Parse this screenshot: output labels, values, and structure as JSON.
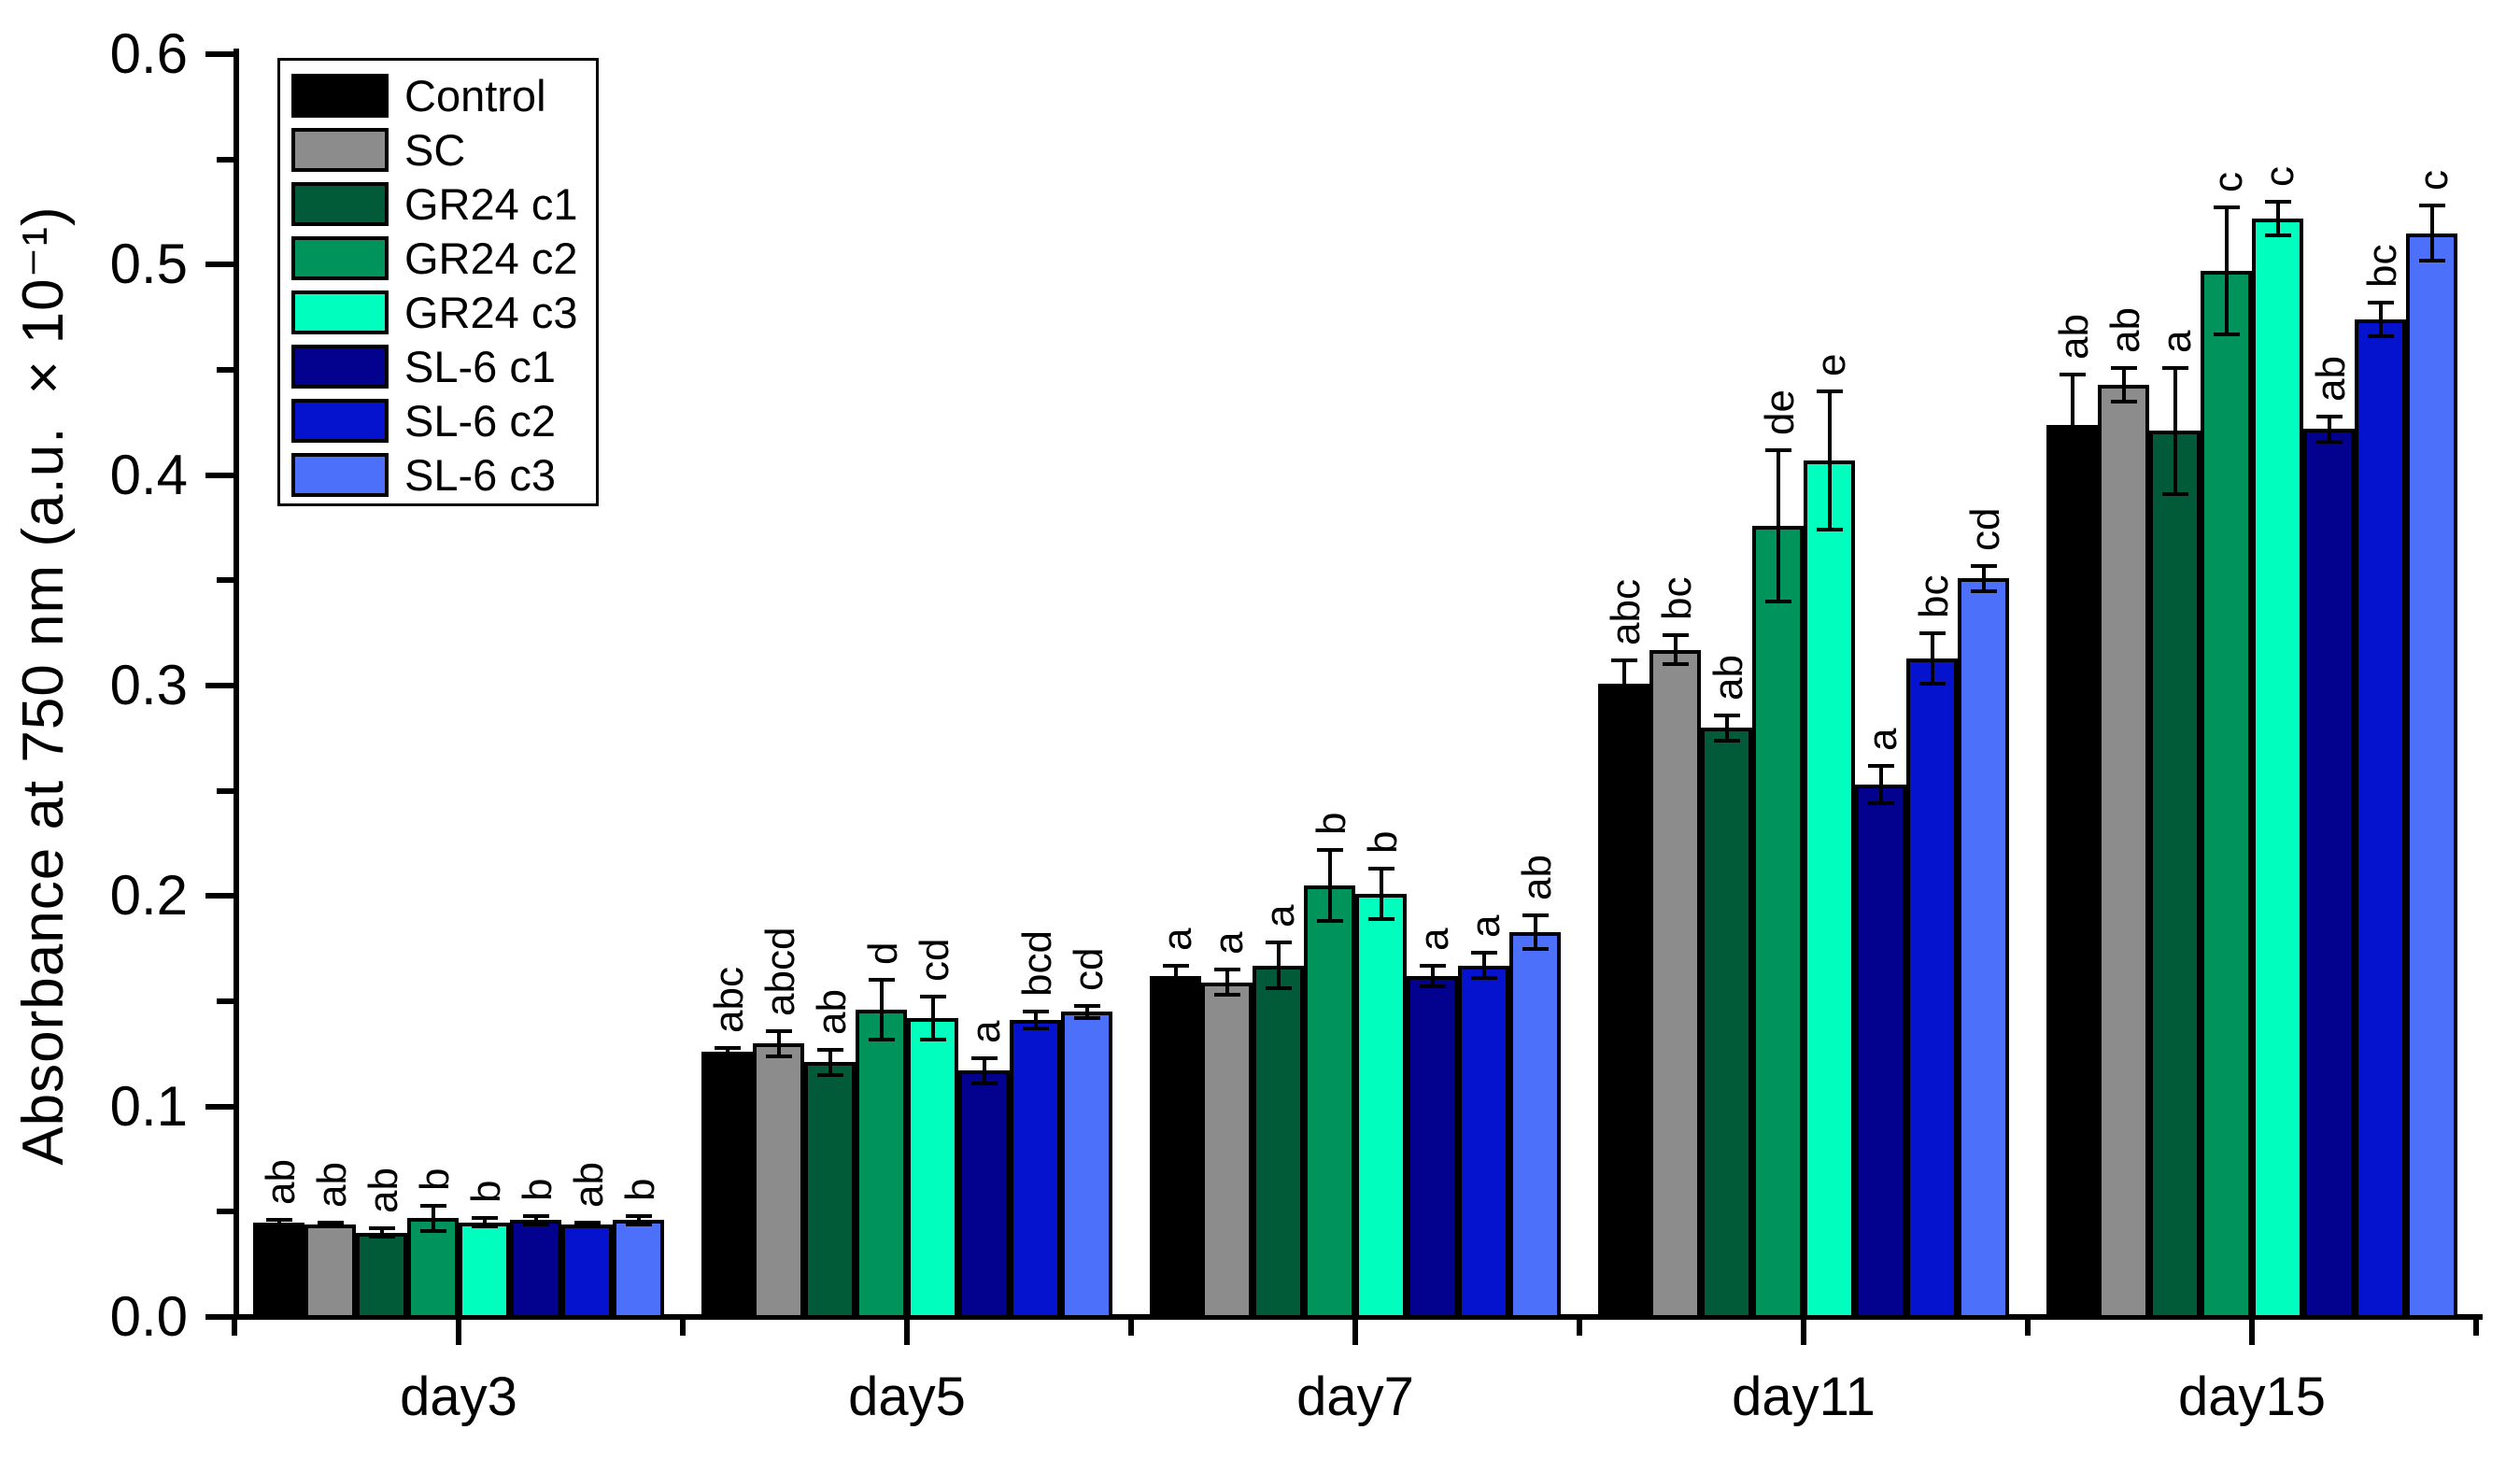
{
  "chart_data": {
    "type": "bar",
    "title": "",
    "xlabel": "",
    "ylabel": "Absorbance at 750 nm (a.u. ×10⁻¹)",
    "ylim": [
      0.0,
      0.6
    ],
    "y_major_tick_step": 0.1,
    "y_minor_tick_step": 0.05,
    "y_tick_labels": [
      "0.0",
      "0.1",
      "0.2",
      "0.3",
      "0.4",
      "0.5",
      "0.6"
    ],
    "grid": false,
    "legend_position": "top-left-inside",
    "error_bars": "symmetric, shown on every bar",
    "annotation_style": "significance letters rotated 90°, reading bottom-to-top, above each error bar",
    "categories": [
      "day3",
      "day5",
      "day7",
      "day11",
      "day15"
    ],
    "series": [
      {
        "name": "Control",
        "color": "#000000",
        "values": [
          0.045,
          0.126,
          0.162,
          0.301,
          0.424
        ],
        "errors": [
          0.001,
          0.002,
          0.005,
          0.011,
          0.024
        ],
        "letters": [
          "ab",
          "abc",
          "a",
          "abc",
          "ab"
        ]
      },
      {
        "name": "SC",
        "color": "#8C8C8C",
        "values": [
          0.044,
          0.13,
          0.159,
          0.317,
          0.443
        ],
        "errors": [
          0.001,
          0.006,
          0.006,
          0.007,
          0.008
        ],
        "letters": [
          "ab",
          "abcd",
          "a",
          "bc",
          "ab"
        ]
      },
      {
        "name": "GR24 c1",
        "color": "#015B38",
        "values": [
          0.04,
          0.121,
          0.167,
          0.28,
          0.421
        ],
        "errors": [
          0.002,
          0.006,
          0.011,
          0.006,
          0.03
        ],
        "letters": [
          "ab",
          "ab",
          "a",
          "ab",
          "a"
        ]
      },
      {
        "name": "GR24 c2",
        "color": "#00945C",
        "values": [
          0.047,
          0.146,
          0.205,
          0.376,
          0.497
        ],
        "errors": [
          0.006,
          0.014,
          0.017,
          0.036,
          0.03
        ],
        "letters": [
          "b",
          "d",
          "b",
          "de",
          "c"
        ]
      },
      {
        "name": "GR24 c3",
        "color": "#00FFBE",
        "values": [
          0.045,
          0.142,
          0.201,
          0.407,
          0.522
        ],
        "errors": [
          0.002,
          0.01,
          0.012,
          0.033,
          0.008
        ],
        "letters": [
          "b",
          "cd",
          "b",
          "e",
          "c"
        ]
      },
      {
        "name": "SL-6 c1",
        "color": "#02028F",
        "values": [
          0.046,
          0.117,
          0.162,
          0.253,
          0.422
        ],
        "errors": [
          0.002,
          0.006,
          0.005,
          0.009,
          0.006
        ],
        "letters": [
          "b",
          "a",
          "a",
          "a",
          "ab"
        ]
      },
      {
        "name": "SL-6 c2",
        "color": "#0613CE",
        "values": [
          0.044,
          0.141,
          0.167,
          0.313,
          0.474
        ],
        "errors": [
          0.001,
          0.004,
          0.006,
          0.012,
          0.008
        ],
        "letters": [
          "ab",
          "bcd",
          "a",
          "bc",
          "bc"
        ]
      },
      {
        "name": "SL-6 c3",
        "color": "#4D70FA",
        "values": [
          0.046,
          0.145,
          0.183,
          0.351,
          0.515
        ],
        "errors": [
          0.002,
          0.003,
          0.008,
          0.006,
          0.013
        ],
        "letters": [
          "b",
          "cd",
          "ab",
          "cd",
          "c"
        ]
      }
    ]
  }
}
